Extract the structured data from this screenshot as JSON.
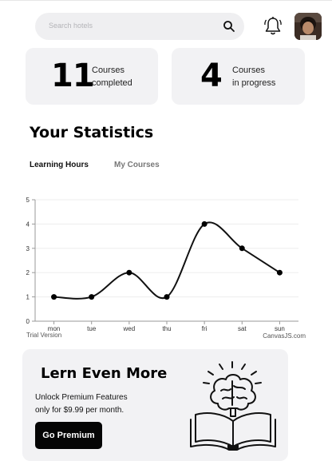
{
  "search": {
    "placeholder": "Search hotels",
    "icon": "search-icon"
  },
  "header": {
    "bell_icon": "bell-icon",
    "avatar": "user-avatar"
  },
  "cards": [
    {
      "number": "11",
      "line1": "Courses",
      "line2": "completed"
    },
    {
      "number": "4",
      "line1": "Courses",
      "line2": "in progress"
    }
  ],
  "statistics": {
    "title": "Your Statistics",
    "tabs": [
      "Learning Hours",
      "My Courses"
    ],
    "active_tab": "Learning Hours"
  },
  "chart_data": {
    "type": "line",
    "categories": [
      "mon",
      "tue",
      "wed",
      "thu",
      "fri",
      "sat",
      "sun"
    ],
    "values": [
      1,
      1,
      2,
      1,
      4,
      3,
      2
    ],
    "ylim": [
      0,
      5
    ],
    "yticks": [
      "0",
      "1",
      "2",
      "3",
      "4",
      "5"
    ],
    "title": "",
    "xlabel": "",
    "ylabel": "",
    "grid": true,
    "watermark_left": "Trial Version",
    "watermark_right": "CanvasJS.com",
    "line_color": "#111111"
  },
  "promo": {
    "title": "Lern Even More",
    "line1": "Unlock Premium Features",
    "line2": "only for $9.99 per month.",
    "button": "Go Premium",
    "illustration": "brain-book-icon"
  }
}
